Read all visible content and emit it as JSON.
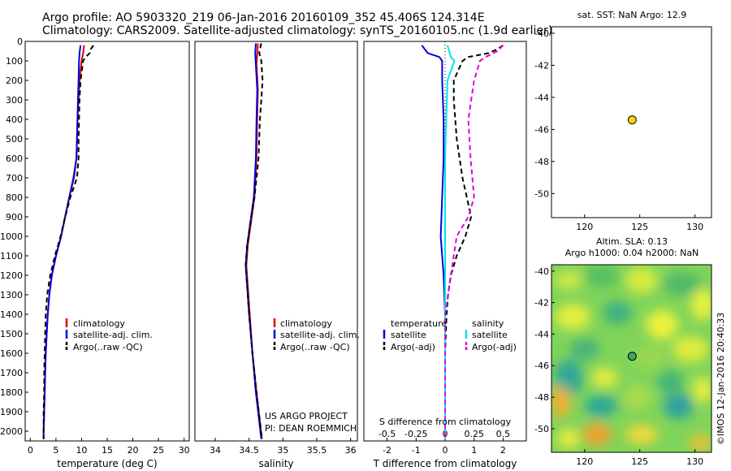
{
  "header": {
    "title": "Argo profile: AO 5903320_219 06-Jan-2016 20160109_352 45.406S 124.314E",
    "subtitle": "Climatology: CARS2009. Satellite-adjusted climatology: synTS_20160105.nc (1.9d earlier)"
  },
  "colors": {
    "climatology": "#dd0000",
    "satellite": "#0000dd",
    "argo": "#000000",
    "sal_satellite": "#00e5e5",
    "sal_argo": "#e000e0",
    "float": "#ffd500"
  },
  "depth_axis": {
    "ylim": [
      0,
      2050
    ],
    "ticks": [
      0,
      100,
      200,
      300,
      400,
      500,
      600,
      700,
      800,
      900,
      1000,
      1100,
      1200,
      1300,
      1400,
      1500,
      1600,
      1700,
      1800,
      1900,
      2000
    ]
  },
  "chart_data": [
    {
      "id": "temperature",
      "type": "line",
      "xlabel": "temperature (deg C)",
      "xlim": [
        -1,
        31
      ],
      "xticks": [
        0,
        5,
        10,
        15,
        20,
        25,
        30
      ],
      "legend": [
        "climatology",
        "satellite-adj. clim.",
        "Argo(..raw -QC)"
      ],
      "series": [
        {
          "key": "climatology",
          "values": [
            [
              10.5,
              20
            ],
            [
              10.3,
              60
            ],
            [
              10.0,
              100
            ],
            [
              9.6,
              200
            ],
            [
              9.4,
              300
            ],
            [
              9.2,
              400
            ],
            [
              9.1,
              500
            ],
            [
              9.0,
              600
            ],
            [
              8.4,
              700
            ],
            [
              7.6,
              800
            ],
            [
              6.8,
              900
            ],
            [
              6.0,
              1000
            ],
            [
              5.0,
              1100
            ],
            [
              4.2,
              1200
            ],
            [
              3.7,
              1300
            ],
            [
              3.4,
              1400
            ],
            [
              3.2,
              1500
            ],
            [
              3.0,
              1600
            ],
            [
              2.9,
              1700
            ],
            [
              2.8,
              1800
            ],
            [
              2.7,
              1900
            ],
            [
              2.6,
              2000
            ],
            [
              2.6,
              2040
            ]
          ]
        },
        {
          "key": "satellite",
          "values": [
            [
              9.8,
              20
            ],
            [
              9.6,
              60
            ],
            [
              9.5,
              100
            ],
            [
              9.4,
              200
            ],
            [
              9.3,
              300
            ],
            [
              9.2,
              400
            ],
            [
              9.1,
              500
            ],
            [
              9.0,
              600
            ],
            [
              8.5,
              700
            ],
            [
              7.6,
              800
            ],
            [
              6.8,
              900
            ],
            [
              6.0,
              1000
            ],
            [
              5.0,
              1100
            ],
            [
              4.2,
              1200
            ],
            [
              3.7,
              1300
            ],
            [
              3.4,
              1400
            ],
            [
              3.2,
              1500
            ],
            [
              3.0,
              1600
            ],
            [
              2.9,
              1700
            ],
            [
              2.8,
              1800
            ],
            [
              2.7,
              1900
            ],
            [
              2.6,
              2000
            ],
            [
              2.6,
              2040
            ]
          ]
        },
        {
          "key": "argo",
          "dashed": true,
          "values": [
            [
              12.3,
              20
            ],
            [
              11.8,
              40
            ],
            [
              11.6,
              60
            ],
            [
              10.8,
              80
            ],
            [
              10.3,
              100
            ],
            [
              9.8,
              200
            ],
            [
              9.6,
              300
            ],
            [
              9.5,
              400
            ],
            [
              9.4,
              500
            ],
            [
              9.4,
              600
            ],
            [
              9.1,
              700
            ],
            [
              7.8,
              800
            ],
            [
              6.8,
              900
            ],
            [
              5.9,
              1000
            ],
            [
              4.8,
              1100
            ],
            [
              3.9,
              1200
            ],
            [
              3.3,
              1300
            ],
            [
              3.0,
              1400
            ],
            [
              2.9,
              1500
            ],
            [
              2.8,
              1600
            ],
            [
              2.7,
              1700
            ],
            [
              2.7,
              1800
            ],
            [
              2.6,
              1900
            ],
            [
              2.6,
              2000
            ],
            [
              2.6,
              2040
            ]
          ]
        }
      ]
    },
    {
      "id": "salinity",
      "type": "line",
      "xlabel": "salinity",
      "xlim": [
        33.7,
        36.1
      ],
      "xticks": [
        34,
        34.5,
        35,
        35.5,
        36
      ],
      "legend": [
        "climatology",
        "satellite-adj. clim.",
        "Argo(..raw -QC)"
      ],
      "annotations": [
        "US ARGO PROJECT",
        "PI: DEAN ROEMMICH"
      ],
      "series": [
        {
          "key": "climatology",
          "values": [
            [
              34.63,
              10
            ],
            [
              34.62,
              60
            ],
            [
              34.61,
              120
            ],
            [
              34.62,
              180
            ],
            [
              34.63,
              250
            ],
            [
              34.62,
              400
            ],
            [
              34.61,
              600
            ],
            [
              34.58,
              800
            ],
            [
              34.52,
              950
            ],
            [
              34.48,
              1050
            ],
            [
              34.46,
              1150
            ],
            [
              34.48,
              1250
            ],
            [
              34.51,
              1400
            ],
            [
              34.55,
              1600
            ],
            [
              34.61,
              1800
            ],
            [
              34.66,
              1950
            ],
            [
              34.69,
              2040
            ]
          ]
        },
        {
          "key": "satellite",
          "values": [
            [
              34.6,
              10
            ],
            [
              34.59,
              60
            ],
            [
              34.6,
              120
            ],
            [
              34.61,
              180
            ],
            [
              34.62,
              250
            ],
            [
              34.61,
              400
            ],
            [
              34.6,
              600
            ],
            [
              34.57,
              800
            ],
            [
              34.51,
              950
            ],
            [
              34.47,
              1050
            ],
            [
              34.45,
              1150
            ],
            [
              34.47,
              1250
            ],
            [
              34.5,
              1400
            ],
            [
              34.55,
              1600
            ],
            [
              34.6,
              1800
            ],
            [
              34.65,
              1950
            ],
            [
              34.68,
              2040
            ]
          ]
        },
        {
          "key": "argo",
          "dashed": true,
          "values": [
            [
              34.68,
              10
            ],
            [
              34.66,
              40
            ],
            [
              34.65,
              60
            ],
            [
              34.68,
              100
            ],
            [
              34.7,
              200
            ],
            [
              34.68,
              300
            ],
            [
              34.66,
              400
            ],
            [
              34.64,
              600
            ],
            [
              34.58,
              800
            ],
            [
              34.51,
              950
            ],
            [
              34.47,
              1050
            ],
            [
              34.45,
              1150
            ],
            [
              34.47,
              1250
            ],
            [
              34.5,
              1400
            ],
            [
              34.55,
              1600
            ],
            [
              34.61,
              1800
            ],
            [
              34.66,
              1950
            ],
            [
              34.69,
              2040
            ]
          ]
        }
      ]
    },
    {
      "id": "difference",
      "type": "line",
      "xlabel": "T difference from climatology",
      "xlabel_top": "S difference from climatology",
      "xlim": [
        -2.8,
        2.8
      ],
      "xticks": [
        -2,
        -1,
        0,
        1,
        2
      ],
      "s_ticks": [
        -0.5,
        -0.25,
        0,
        0.25,
        0.5
      ],
      "legend_groups": [
        {
          "title": "temperature",
          "items": [
            "satellite",
            "Argo(-adj)"
          ]
        },
        {
          "title": "salinity",
          "items": [
            "satellite",
            "Argo(-adj)"
          ]
        }
      ],
      "series": [
        {
          "key": "t_satellite",
          "values": [
            [
              -0.8,
              20
            ],
            [
              -0.6,
              60
            ],
            [
              -0.2,
              80
            ],
            [
              -0.1,
              100
            ],
            [
              -0.1,
              200
            ],
            [
              -0.05,
              400
            ],
            [
              -0.05,
              600
            ],
            [
              -0.1,
              800
            ],
            [
              -0.15,
              1000
            ],
            [
              -0.1,
              1100
            ],
            [
              -0.05,
              1200
            ],
            [
              0,
              1400
            ],
            [
              0,
              1600
            ],
            [
              0,
              2040
            ]
          ]
        },
        {
          "key": "t_argo",
          "dashed": true,
          "values": [
            [
              2.0,
              20
            ],
            [
              1.8,
              40
            ],
            [
              1.5,
              60
            ],
            [
              0.8,
              80
            ],
            [
              0.6,
              100
            ],
            [
              0.3,
              200
            ],
            [
              0.3,
              300
            ],
            [
              0.4,
              500
            ],
            [
              0.6,
              700
            ],
            [
              0.9,
              900
            ],
            [
              0.7,
              1000
            ],
            [
              0.4,
              1100
            ],
            [
              0.2,
              1200
            ],
            [
              0.1,
              1300
            ],
            [
              0.05,
              1400
            ],
            [
              0,
              1600
            ],
            [
              0,
              2040
            ]
          ]
        },
        {
          "key": "s_satellite",
          "values": [
            [
              0.02,
              20
            ],
            [
              0.05,
              80
            ],
            [
              0.08,
              100
            ],
            [
              0.02,
              200
            ],
            [
              0.01,
              400
            ],
            [
              0,
              600
            ],
            [
              0,
              1000
            ],
            [
              0,
              2040
            ]
          ]
        },
        {
          "key": "s_argo",
          "dashed": true,
          "values": [
            [
              0.5,
              20
            ],
            [
              0.45,
              50
            ],
            [
              0.35,
              80
            ],
            [
              0.3,
              100
            ],
            [
              0.25,
              200
            ],
            [
              0.2,
              400
            ],
            [
              0.22,
              600
            ],
            [
              0.25,
              800
            ],
            [
              0.2,
              900
            ],
            [
              0.1,
              1000
            ],
            [
              0.05,
              1200
            ],
            [
              0,
              1400
            ],
            [
              0,
              2040
            ]
          ]
        }
      ]
    }
  ],
  "map_sst": {
    "title": "sat. SST: NaN Argo: 12.9",
    "xlim": [
      117,
      131.5
    ],
    "ylim": [
      -51.5,
      -39.6
    ],
    "xticks": [
      120,
      125,
      130
    ],
    "yticks": [
      -40,
      -42,
      -44,
      -46,
      -48,
      -50
    ],
    "float": {
      "lon": 124.314,
      "lat": -45.406
    }
  },
  "map_sla": {
    "title_line1": "Altim. SLA: 0.13",
    "title_line2": "Argo h1000: 0.04 h2000: NaN",
    "xlim": [
      117,
      131.5
    ],
    "ylim": [
      -51.5,
      -39.6
    ],
    "xticks": [
      120,
      125,
      130
    ],
    "yticks": [
      -40,
      -42,
      -44,
      -46,
      -48,
      -50
    ],
    "float": {
      "lon": 124.314,
      "lat": -45.406
    }
  },
  "watermark": "©IMOS 12-Jan-2016 20:40:33"
}
